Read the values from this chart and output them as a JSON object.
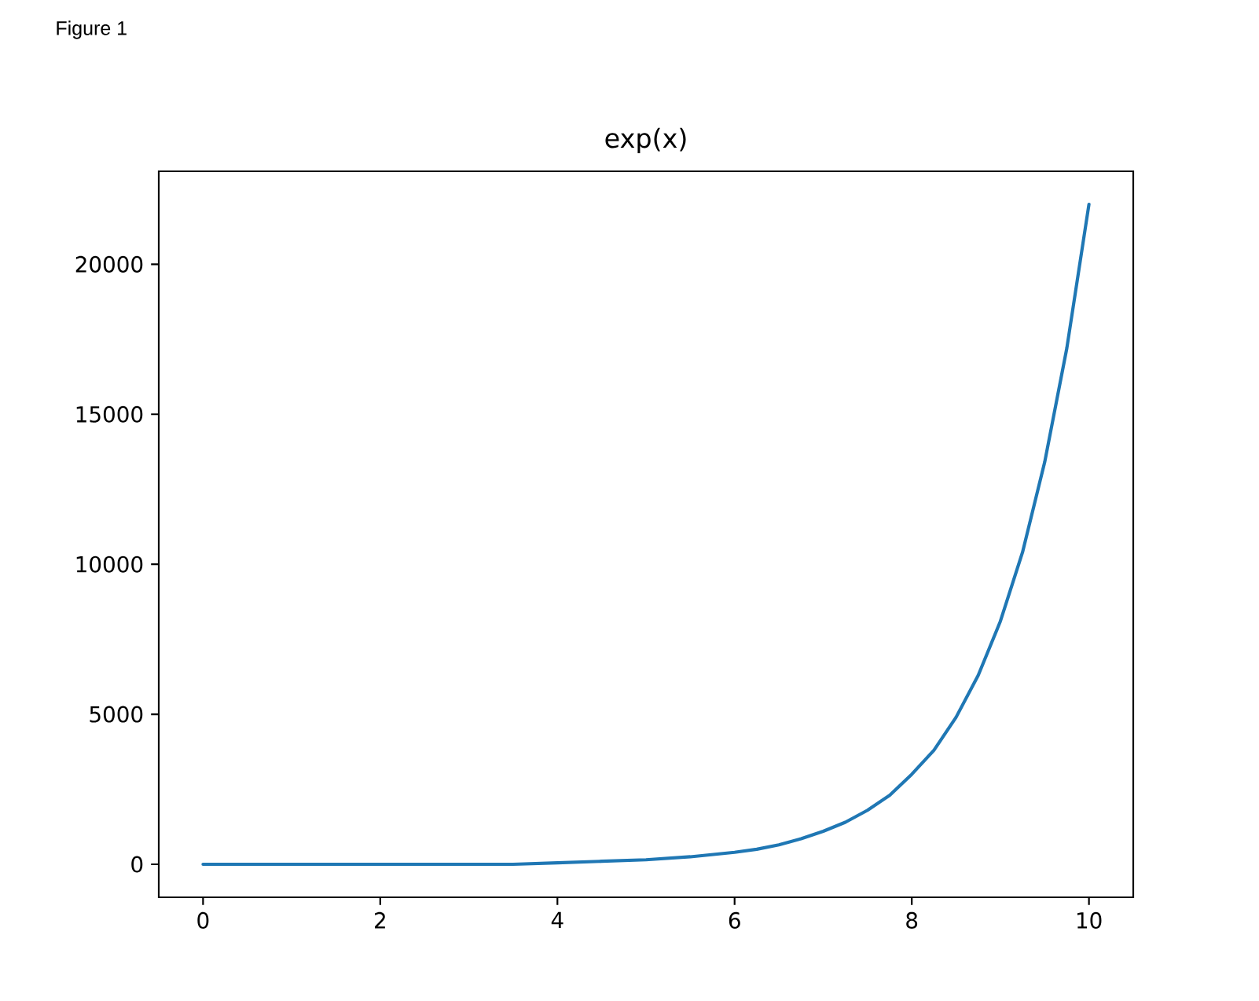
{
  "chart_data": {
    "type": "line",
    "title": "exp(x)",
    "annotations": [
      "Figure 1"
    ],
    "x": [
      0,
      0.5,
      1,
      1.5,
      2,
      2.5,
      3,
      3.5,
      4,
      4.5,
      5,
      5.5,
      6,
      6.25,
      6.5,
      6.75,
      7,
      7.25,
      7.5,
      7.75,
      8,
      8.25,
      8.5,
      8.75,
      9,
      9.25,
      9.5,
      9.75,
      10
    ],
    "series": [
      {
        "color": "#1f77b4",
        "values": [
          0,
          0,
          0,
          0,
          0,
          0,
          0,
          0,
          50,
          100,
          150,
          250,
          400,
          500,
          650,
          850,
          1100,
          1400,
          1800,
          2300,
          3000,
          3800,
          4900,
          6300,
          8100,
          10400,
          13400,
          17200,
          22000
        ]
      }
    ],
    "xlim": [
      -0.5,
      10.5
    ],
    "ylim": [
      -1100,
      23100
    ],
    "xticks": [
      0,
      2,
      4,
      6,
      8,
      10
    ],
    "yticks": [
      0,
      5000,
      10000,
      15000,
      20000
    ]
  }
}
